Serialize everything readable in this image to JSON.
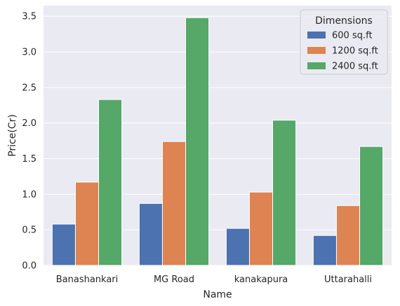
{
  "chart_data": {
    "type": "bar",
    "xlabel": "Name",
    "ylabel": "Price(Cr)",
    "categories": [
      "Banashankari",
      "MG Road",
      "kanakapura",
      "Uttarahalli"
    ],
    "ylim": [
      0,
      3.65
    ],
    "yticks": [
      "0.0",
      "0.5",
      "1.0",
      "1.5",
      "2.0",
      "2.5",
      "3.0",
      "3.5"
    ],
    "grid": true,
    "legend": {
      "title": "Dimensions",
      "placement": "top-right"
    },
    "series": [
      {
        "name": "600 sq.ft",
        "color": "#4c72b0",
        "values": [
          0.58,
          0.87,
          0.52,
          0.42
        ]
      },
      {
        "name": "1200 sq.ft",
        "color": "#dd8452",
        "values": [
          1.17,
          1.74,
          1.03,
          0.84
        ]
      },
      {
        "name": "2400 sq.ft",
        "color": "#55a868",
        "values": [
          2.33,
          3.48,
          2.04,
          1.67
        ]
      }
    ],
    "style": {
      "background": "#eaeaf2",
      "grid_color": "#ffffff"
    }
  }
}
